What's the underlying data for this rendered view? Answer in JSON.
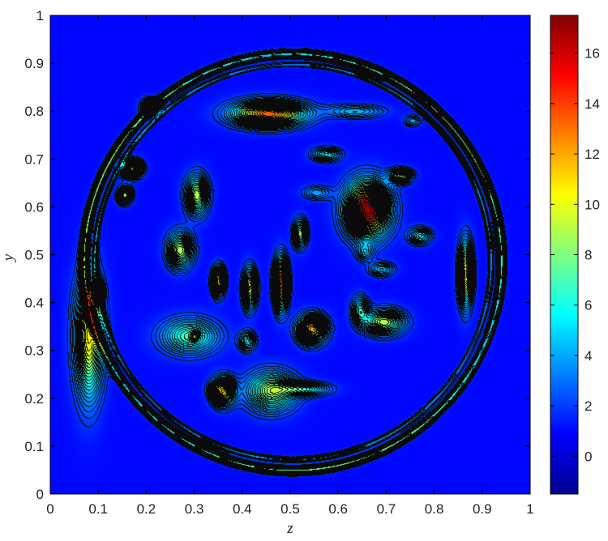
{
  "chart_data": {
    "type": "heatmap",
    "title": "",
    "xlabel": "z",
    "ylabel": "y",
    "xlim": [
      0,
      1
    ],
    "ylim": [
      0,
      1
    ],
    "xticks": [
      "0",
      "0.1",
      "0.2",
      "0.3",
      "0.4",
      "0.5",
      "0.6",
      "0.7",
      "0.8",
      "0.9",
      "1"
    ],
    "yticks": [
      "0",
      "0.1",
      "0.2",
      "0.3",
      "0.4",
      "0.5",
      "0.6",
      "0.7",
      "0.8",
      "0.9",
      "1"
    ],
    "colorbar": {
      "range": [
        -1.5,
        17.5
      ],
      "ticks": [
        "0",
        "2",
        "4",
        "6",
        "8",
        "10",
        "12",
        "14",
        "16"
      ],
      "colormap": "jet"
    },
    "background_value": 1.0,
    "ring": {
      "cx": 0.505,
      "cy": 0.485,
      "r": 0.435,
      "value": 7
    },
    "blobs": [
      {
        "z": 0.455,
        "y": 0.795,
        "sx": 0.05,
        "sy": 0.018,
        "v": 13.5
      },
      {
        "z": 0.66,
        "y": 0.595,
        "sx": 0.03,
        "sy": 0.038,
        "v": 17
      },
      {
        "z": 0.08,
        "y": 0.33,
        "sx": 0.02,
        "sy": 0.085,
        "v": 10.5
      },
      {
        "z": 0.27,
        "y": 0.51,
        "sx": 0.018,
        "sy": 0.025,
        "v": 9
      },
      {
        "z": 0.305,
        "y": 0.625,
        "sx": 0.016,
        "sy": 0.028,
        "v": 9
      },
      {
        "z": 0.29,
        "y": 0.33,
        "sx": 0.04,
        "sy": 0.025,
        "v": 7
      },
      {
        "z": 0.36,
        "y": 0.215,
        "sx": 0.016,
        "sy": 0.02,
        "v": 11
      },
      {
        "z": 0.46,
        "y": 0.215,
        "sx": 0.035,
        "sy": 0.028,
        "v": 8.5
      },
      {
        "z": 0.53,
        "y": 0.22,
        "sx": 0.035,
        "sy": 0.01,
        "v": 6
      },
      {
        "z": 0.48,
        "y": 0.44,
        "sx": 0.01,
        "sy": 0.035,
        "v": 14
      },
      {
        "z": 0.415,
        "y": 0.43,
        "sx": 0.01,
        "sy": 0.028,
        "v": 10
      },
      {
        "z": 0.35,
        "y": 0.445,
        "sx": 0.009,
        "sy": 0.02,
        "v": 11
      },
      {
        "z": 0.545,
        "y": 0.345,
        "sx": 0.02,
        "sy": 0.02,
        "v": 12
      },
      {
        "z": 0.695,
        "y": 0.36,
        "sx": 0.028,
        "sy": 0.018,
        "v": 9
      },
      {
        "z": 0.865,
        "y": 0.46,
        "sx": 0.01,
        "sy": 0.045,
        "v": 11
      },
      {
        "z": 0.17,
        "y": 0.68,
        "sx": 0.014,
        "sy": 0.012,
        "v": 12
      },
      {
        "z": 0.155,
        "y": 0.625,
        "sx": 0.01,
        "sy": 0.012,
        "v": 9
      },
      {
        "z": 0.21,
        "y": 0.81,
        "sx": 0.012,
        "sy": 0.01,
        "v": 12
      },
      {
        "z": 0.52,
        "y": 0.545,
        "sx": 0.01,
        "sy": 0.02,
        "v": 8
      },
      {
        "z": 0.69,
        "y": 0.47,
        "sx": 0.018,
        "sy": 0.01,
        "v": 5
      },
      {
        "z": 0.77,
        "y": 0.54,
        "sx": 0.016,
        "sy": 0.012,
        "v": 6
      },
      {
        "z": 0.555,
        "y": 0.63,
        "sx": 0.02,
        "sy": 0.01,
        "v": 4
      },
      {
        "z": 0.575,
        "y": 0.71,
        "sx": 0.02,
        "sy": 0.01,
        "v": 6
      },
      {
        "z": 0.73,
        "y": 0.665,
        "sx": 0.016,
        "sy": 0.01,
        "v": 9
      },
      {
        "z": 0.635,
        "y": 0.8,
        "sx": 0.04,
        "sy": 0.01,
        "v": 4.5
      },
      {
        "z": 0.755,
        "y": 0.78,
        "sx": 0.012,
        "sy": 0.008,
        "v": 4
      },
      {
        "z": 0.095,
        "y": 0.42,
        "sx": 0.008,
        "sy": 0.015,
        "v": 13
      },
      {
        "z": 0.645,
        "y": 0.385,
        "sx": 0.012,
        "sy": 0.02,
        "v": 6
      },
      {
        "z": 0.41,
        "y": 0.32,
        "sx": 0.012,
        "sy": 0.014,
        "v": 6
      },
      {
        "z": 0.3,
        "y": 0.33,
        "sx": 0.006,
        "sy": 0.006,
        "v": 4
      },
      {
        "z": 0.34,
        "y": 0.22,
        "sx": 0.01,
        "sy": 0.01,
        "v": 3
      },
      {
        "z": 0.655,
        "y": 0.505,
        "sx": 0.012,
        "sy": 0.012,
        "v": 4
      }
    ]
  }
}
